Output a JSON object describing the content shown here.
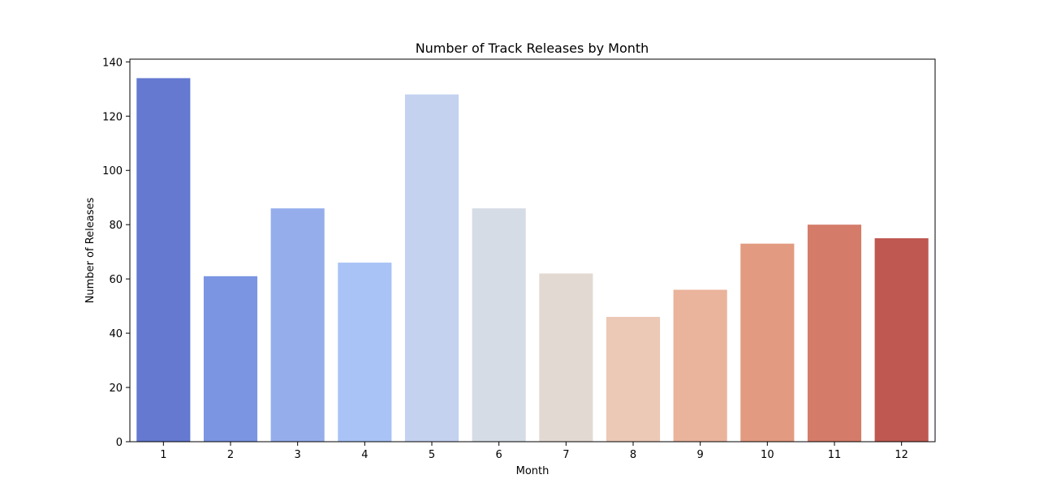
{
  "chart_data": {
    "type": "bar",
    "title": "Number of Track Releases by Month",
    "xlabel": "Month",
    "ylabel": "Number of Releases",
    "categories": [
      "1",
      "2",
      "3",
      "4",
      "5",
      "6",
      "7",
      "8",
      "9",
      "10",
      "11",
      "12"
    ],
    "values": [
      134,
      61,
      86,
      66,
      128,
      86,
      62,
      46,
      56,
      73,
      80,
      75
    ],
    "colors": [
      "#6479cf",
      "#7b95e2",
      "#95aeeb",
      "#a9c3f6",
      "#c4d2f0",
      "#d5dce5",
      "#e3d9d3",
      "#ecc8b6",
      "#eab39b",
      "#e29a81",
      "#d47c69",
      "#be5850"
    ],
    "ylim": [
      0,
      141
    ],
    "yticks": [
      0,
      20,
      40,
      60,
      80,
      100,
      120,
      140
    ],
    "grid": false,
    "legend": "none"
  }
}
